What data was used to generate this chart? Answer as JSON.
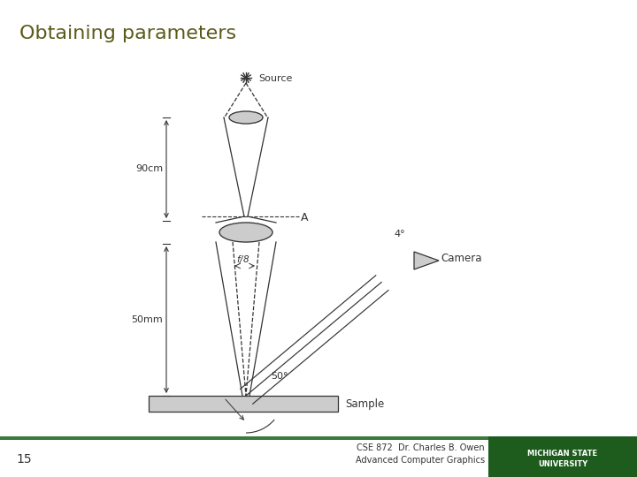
{
  "title": "Obtaining parameters",
  "title_color": "#5a5a1a",
  "title_fontsize": 16,
  "slide_number": "15",
  "footer_text1": "CSE 872  Dr. Charles B. Owen",
  "footer_text2": "Advanced Computer Graphics",
  "msu_box_color": "#1e5c1e",
  "msu_text": "MICHIGAN STATE\nUNIVERSITY",
  "bar_color": "#3a7a3a",
  "background": "#ffffff",
  "dc": "#333333",
  "lens_fill": "#cccccc",
  "sample_fill": "#cccccc"
}
